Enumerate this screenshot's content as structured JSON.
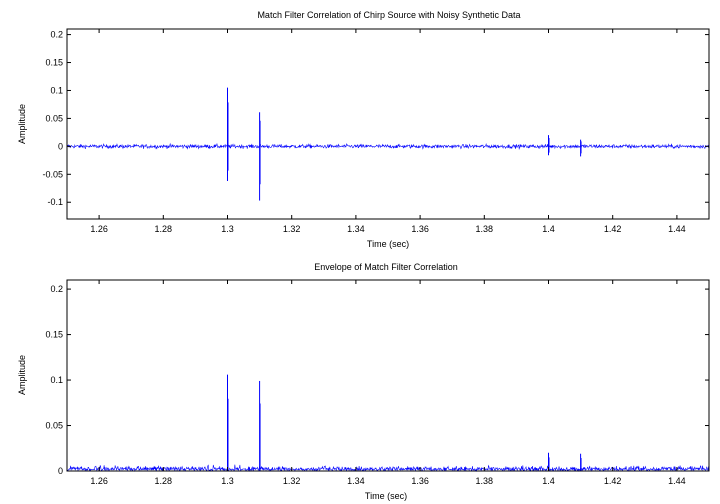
{
  "chart_data": [
    {
      "type": "line",
      "title": "Match Filter Correlation of Chirp Source with Noisy Synthetic Data",
      "xlabel": "Time (sec)",
      "ylabel": "Amplitude",
      "xlim": [
        1.25,
        1.45
      ],
      "ylim": [
        -0.13,
        0.21
      ],
      "xticks": [
        1.26,
        1.28,
        1.3,
        1.32,
        1.34,
        1.36,
        1.38,
        1.4,
        1.42,
        1.44
      ],
      "xtick_labels": [
        "1.26",
        "1.28",
        "1.3",
        "1.32",
        "1.34",
        "1.36",
        "1.38",
        "1.4",
        "1.42",
        "1.44"
      ],
      "yticks": [
        -0.1,
        -0.05,
        0,
        0.05,
        0.1,
        0.15,
        0.2
      ],
      "ytick_labels": [
        "-0.1",
        "-0.05",
        "0",
        "0.05",
        "0.1",
        "0.15",
        "0.2"
      ],
      "grid": false,
      "series_color": "#0000ff",
      "noise_level": 0.006,
      "events": [
        {
          "x": 1.3,
          "max": 0.105,
          "min": -0.062
        },
        {
          "x": 1.31,
          "max": 0.061,
          "min": -0.097
        },
        {
          "x": 1.4,
          "max": 0.02,
          "min": -0.016
        },
        {
          "x": 1.41,
          "max": 0.012,
          "min": -0.018
        }
      ]
    },
    {
      "type": "line",
      "title": "Envelope of Match Filter Correlation",
      "xlabel": "Time (sec)",
      "ylabel": "Amplitude",
      "xlim": [
        1.25,
        1.45
      ],
      "ylim": [
        0,
        0.21
      ],
      "xticks": [
        1.26,
        1.28,
        1.3,
        1.32,
        1.34,
        1.36,
        1.38,
        1.4,
        1.42,
        1.44
      ],
      "xtick_labels": [
        "1.26",
        "1.28",
        "1.3",
        "1.32",
        "1.34",
        "1.36",
        "1.38",
        "1.4",
        "1.42",
        "1.44"
      ],
      "yticks": [
        0,
        0.05,
        0.1,
        0.15,
        0.2
      ],
      "ytick_labels": [
        "0",
        "0.05",
        "0.1",
        "0.15",
        "0.2"
      ],
      "grid": false,
      "series_color": "#0000ff",
      "noise_level": 0.007,
      "events": [
        {
          "x": 1.3,
          "max": 0.106
        },
        {
          "x": 1.31,
          "max": 0.099
        },
        {
          "x": 1.4,
          "max": 0.02
        },
        {
          "x": 1.41,
          "max": 0.019
        }
      ]
    }
  ]
}
